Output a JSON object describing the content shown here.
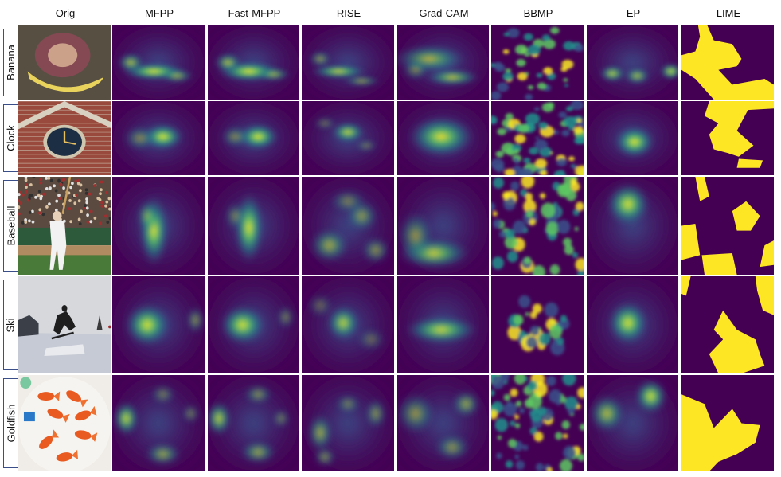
{
  "figure": {
    "columns": [
      "Orig",
      "MFPP",
      "Fast-MFPP",
      "RISE",
      "Grad-CAM",
      "BBMP",
      "EP",
      "LIME"
    ],
    "rows": [
      "Banana",
      "Clock",
      "Baseball",
      "Ski",
      "Goldfish"
    ]
  },
  "colors": {
    "viridis_low": "#440154",
    "viridis_mid_low": "#3b528b",
    "viridis_mid": "#21908c",
    "viridis_mid_high": "#5dc963",
    "viridis_high": "#fde725",
    "lime_mask": "#fde725",
    "lime_bg": "#440154"
  },
  "icons": {
    "Banana": "banana-photo",
    "Clock": "clock-tower-photo",
    "Baseball": "baseball-batter-photo",
    "Ski": "snowboarder-photo",
    "Goldfish": "goldfish-bowl-photo"
  }
}
